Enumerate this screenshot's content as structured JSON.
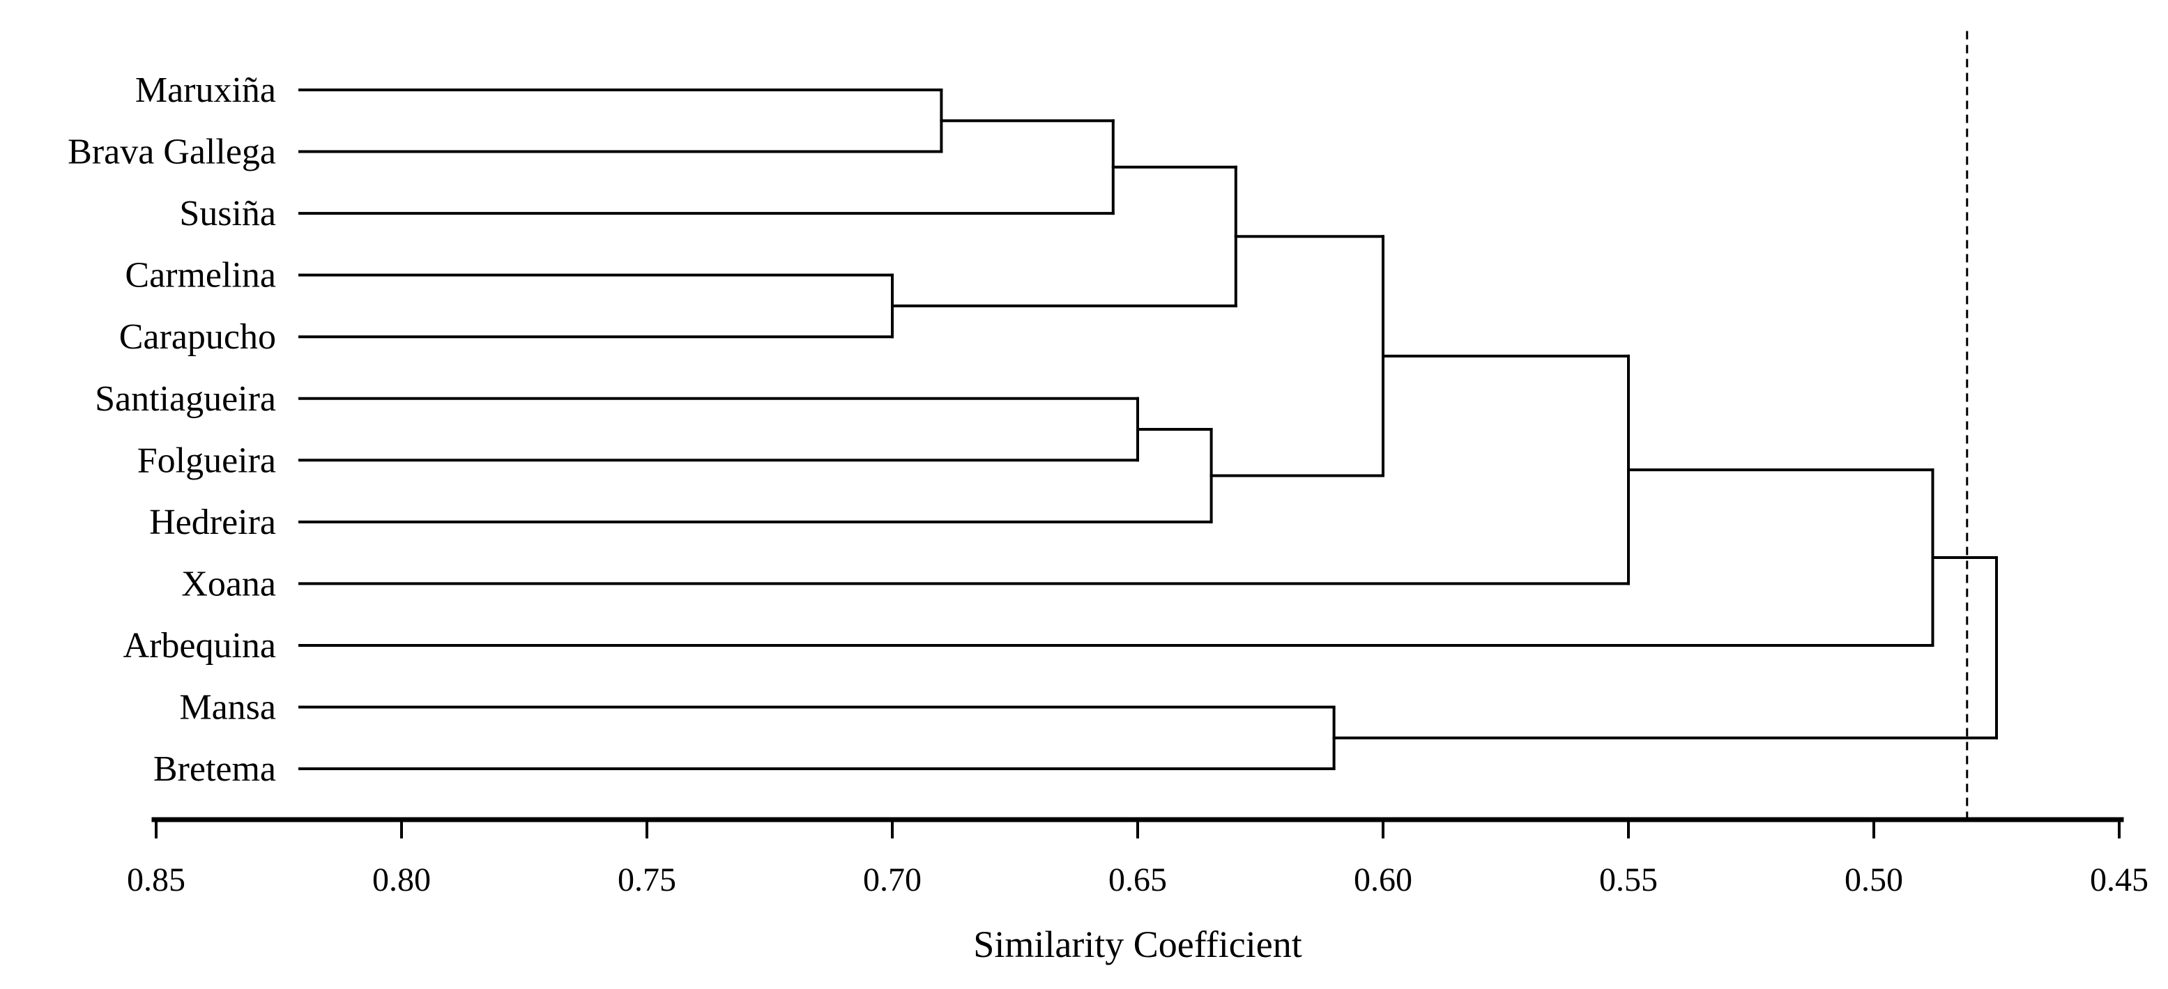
{
  "figure": {
    "background_color": "#ffffff",
    "line_color": "#000000"
  },
  "chart_data": {
    "type": "dendrogram",
    "orientation": "horizontal, leaves on left, axis reversed (high similarity at left)",
    "title": "",
    "xlabel": "Similarity Coefficient",
    "leaves": [
      "Maruxiña",
      "Brava Gallega",
      "Susiña",
      "Carmelina",
      "Carapucho",
      "Santiagueira",
      "Folgueira",
      "Hedreira",
      "Xoana",
      "Arbequina",
      "Mansa",
      "Bretema"
    ],
    "tree": {
      "join": [
        {
          "join": [
            {
              "join": [
                {
                  "join": [
                    {
                      "join": [
                        {
                          "join": [
                            "Maruxiña",
                            "Brava Gallega"
                          ],
                          "at": 0.69
                        },
                        "Susiña"
                      ],
                      "at": 0.655
                    },
                    {
                      "join": [
                        "Carmelina",
                        "Carapucho"
                      ],
                      "at": 0.7
                    }
                  ],
                  "at": 0.63
                },
                {
                  "join": [
                    {
                      "join": [
                        "Santiagueira",
                        "Folgueira"
                      ],
                      "at": 0.65
                    },
                    "Hedreira"
                  ],
                  "at": 0.635
                }
              ],
              "at": 0.6
            },
            "Xoana"
          ],
          "at": 0.55
        },
        "Arbequina"
      ],
      "at": 0.488
    },
    "tree_bottom": {
      "join": [
        "Mansa",
        "Bretema"
      ],
      "at": 0.61
    },
    "root_at": 0.475,
    "merges": [
      {
        "members": [
          "Maruxiña",
          "Brava Gallega"
        ],
        "at": 0.69
      },
      {
        "members": [
          "Maruxiña+Brava Gallega",
          "Susiña"
        ],
        "at": 0.655
      },
      {
        "members": [
          "Carmelina",
          "Carapucho"
        ],
        "at": 0.7
      },
      {
        "members": [
          "Maruxiña+Brava Gallega+Susiña",
          "Carmelina+Carapucho"
        ],
        "at": 0.63
      },
      {
        "members": [
          "Santiagueira",
          "Folgueira"
        ],
        "at": 0.65
      },
      {
        "members": [
          "Santiagueira+Folgueira",
          "Hedreira"
        ],
        "at": 0.635
      },
      {
        "members": [
          "top five cluster",
          "Santiagueira+Folgueira+Hedreira"
        ],
        "at": 0.6
      },
      {
        "members": [
          "nine-leaf cluster",
          "Xoana"
        ],
        "at": 0.55
      },
      {
        "members": [
          "ten-leaf cluster",
          "Arbequina"
        ],
        "at": 0.488
      },
      {
        "members": [
          "Mansa",
          "Bretema"
        ],
        "at": 0.61
      },
      {
        "members": [
          "eleven-leaf cluster",
          "Mansa+Bretema"
        ],
        "at": 0.475
      }
    ],
    "threshold_line": {
      "value": 0.481,
      "style": "dotted"
    },
    "axis": {
      "label": "Similarity Coefficient",
      "max": 0.85,
      "min": 0.45,
      "tick_step": 0.05,
      "tick_labels": [
        "0.85",
        "0.80",
        "0.75",
        "0.70",
        "0.65",
        "0.60",
        "0.55",
        "0.50",
        "0.45"
      ],
      "reversed": true,
      "grid": false
    }
  }
}
